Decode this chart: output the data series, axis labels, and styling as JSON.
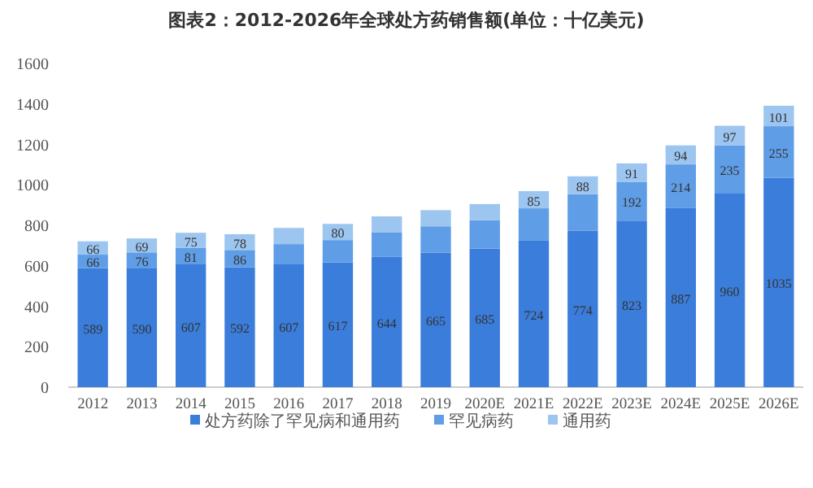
{
  "chart_data": {
    "type": "bar",
    "title": "图表2：2012-2026年全球处方药销售额(单位：十亿美元)",
    "stacked": true,
    "legend": "bottom",
    "categories": [
      "2012",
      "2013",
      "2014",
      "2015",
      "2016",
      "2017",
      "2018",
      "2019",
      "2020E",
      "2021E",
      "2022E",
      "2023E",
      "2024E",
      "2025E",
      "2026E"
    ],
    "ylim": [
      0,
      1600
    ],
    "yticks": [
      0,
      200,
      400,
      600,
      800,
      1000,
      1200,
      1400,
      1600
    ],
    "series": [
      {
        "name": "处方药除了罕见病和通用药",
        "color": "#3b7ddb",
        "values": [
          589,
          590,
          607,
          592,
          607,
          617,
          644,
          665,
          685,
          724,
          774,
          823,
          887,
          960,
          1035
        ],
        "value_labels": [
          "589",
          "590",
          "607",
          "592",
          "607",
          "617",
          "644",
          "665",
          "685",
          "724",
          "774",
          "823",
          "887",
          "960",
          "1035"
        ]
      },
      {
        "name": "罕见病药",
        "color": "#5f9de6",
        "values": [
          66,
          76,
          81,
          86,
          100,
          110,
          120,
          130,
          140,
          160,
          180,
          192,
          214,
          235,
          255
        ],
        "value_labels": [
          "66",
          "76",
          "81",
          "86",
          null,
          null,
          null,
          null,
          null,
          null,
          null,
          "192",
          "214",
          "235",
          "255"
        ]
      },
      {
        "name": "通用药",
        "color": "#9cc5f0",
        "values": [
          66,
          69,
          75,
          78,
          80,
          80,
          80,
          80,
          80,
          85,
          88,
          91,
          94,
          97,
          101
        ],
        "value_labels": [
          "66",
          "69",
          "75",
          "78",
          null,
          "80",
          null,
          null,
          null,
          "85",
          "88",
          "91",
          "94",
          "97",
          "101"
        ]
      }
    ]
  }
}
